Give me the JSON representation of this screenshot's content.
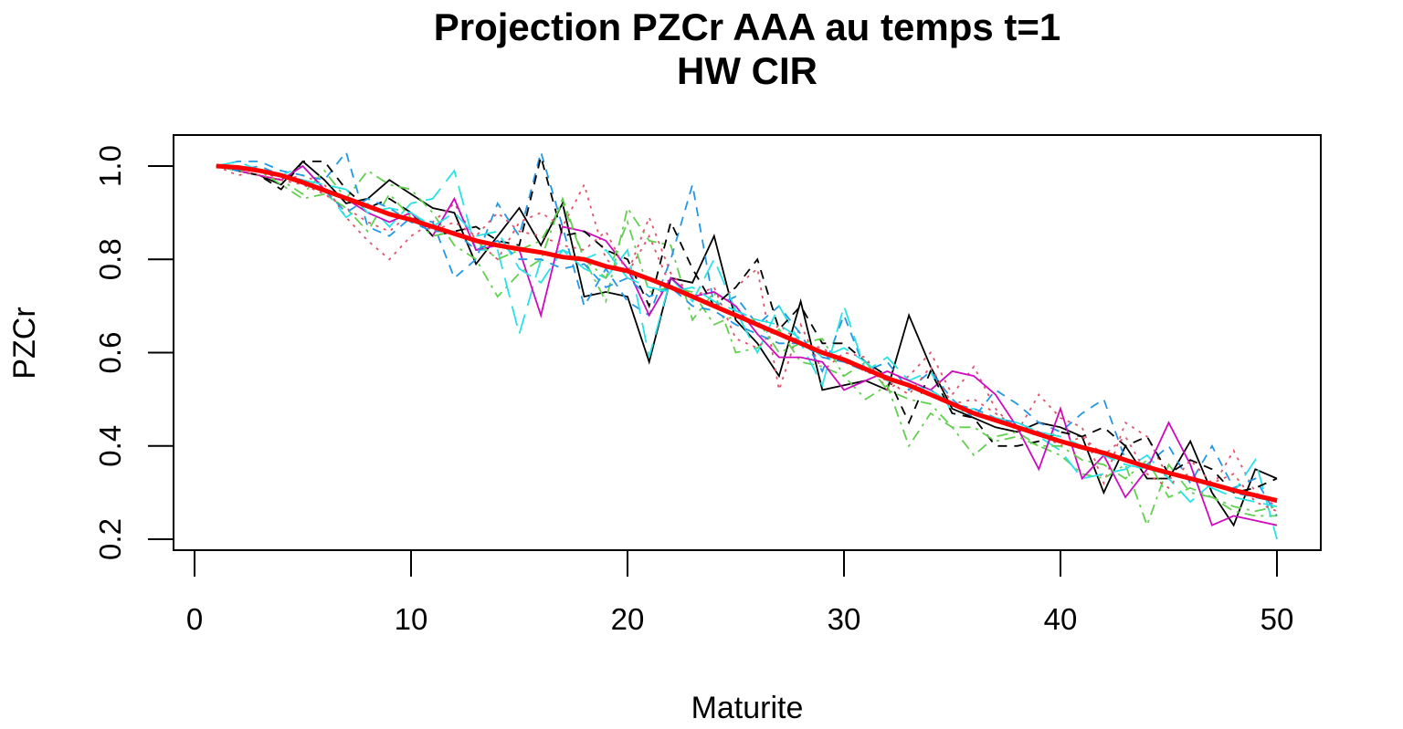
{
  "chart_data": {
    "type": "line",
    "title": "Projection PZCr AAA au temps t=1",
    "subtitle": "HW CIR",
    "xlabel": "Maturite",
    "ylabel": "PZCr",
    "xlim": [
      1,
      50
    ],
    "ylim": [
      0.2,
      1.0
    ],
    "xticks": [
      0,
      10,
      20,
      30,
      40,
      50
    ],
    "yticks": [
      0.2,
      0.4,
      0.6,
      0.8,
      1.0
    ],
    "ytick_labels": [
      "0.2",
      "0.4",
      "0.6",
      "0.8",
      "1.0"
    ],
    "xtick_labels": [
      "0",
      "10",
      "20",
      "30",
      "40",
      "50"
    ],
    "x": [
      1,
      2,
      3,
      4,
      5,
      6,
      7,
      8,
      9,
      10,
      11,
      12,
      13,
      14,
      15,
      16,
      17,
      18,
      19,
      20,
      21,
      22,
      23,
      24,
      25,
      26,
      27,
      28,
      29,
      30,
      31,
      32,
      33,
      34,
      35,
      36,
      37,
      38,
      39,
      40,
      41,
      42,
      43,
      44,
      45,
      46,
      47,
      48,
      49,
      50
    ],
    "mean_color": "#ff0000",
    "series_colors": [
      "#000000",
      "#df536b",
      "#61d04f",
      "#2297e6",
      "#28e2e5",
      "#cd0bbc",
      "#000000",
      "#df536b",
      "#61d04f",
      "#2297e6",
      "#28e2e5"
    ],
    "series_styles": [
      "solid",
      "dotted",
      "dashdot",
      "dashed",
      "longdash",
      "solid",
      "dashed",
      "dotted",
      "dashdot",
      "dashed",
      "longdash"
    ],
    "series": [
      {
        "values": [
          1.0,
          0.99,
          0.98,
          0.96,
          1.01,
          0.97,
          0.92,
          0.93,
          0.97,
          0.94,
          0.91,
          0.9,
          0.79,
          0.85,
          0.91,
          0.83,
          0.92,
          0.72,
          0.73,
          0.72,
          0.58,
          0.76,
          0.75,
          0.85,
          0.67,
          0.62,
          0.55,
          0.71,
          0.52,
          0.53,
          0.54,
          0.52,
          0.68,
          0.57,
          0.48,
          0.46,
          0.44,
          0.43,
          0.45,
          0.44,
          0.42,
          0.3,
          0.4,
          0.33,
          0.33,
          0.41,
          0.3,
          0.23,
          0.35,
          0.33
        ]
      },
      {
        "values": [
          1.0,
          0.98,
          0.99,
          0.97,
          0.98,
          0.96,
          0.89,
          0.84,
          0.8,
          0.85,
          0.88,
          0.92,
          0.84,
          0.8,
          0.88,
          0.9,
          0.87,
          0.96,
          0.8,
          0.77,
          0.85,
          0.74,
          0.72,
          0.7,
          0.74,
          0.78,
          0.52,
          0.66,
          0.56,
          0.6,
          0.59,
          0.52,
          0.55,
          0.6,
          0.51,
          0.57,
          0.48,
          0.43,
          0.51,
          0.46,
          0.44,
          0.32,
          0.45,
          0.42,
          0.33,
          0.34,
          0.31,
          0.39,
          0.3,
          0.27
        ]
      },
      {
        "values": [
          1.0,
          0.99,
          0.98,
          0.97,
          0.94,
          0.99,
          0.93,
          0.99,
          0.96,
          0.95,
          0.9,
          0.83,
          0.8,
          0.72,
          0.77,
          0.8,
          0.93,
          0.8,
          0.71,
          0.91,
          0.84,
          0.83,
          0.67,
          0.73,
          0.6,
          0.61,
          0.65,
          0.58,
          0.57,
          0.55,
          0.5,
          0.53,
          0.4,
          0.47,
          0.44,
          0.38,
          0.42,
          0.43,
          0.4,
          0.38,
          0.34,
          0.33,
          0.36,
          0.23,
          0.36,
          0.3,
          0.29,
          0.26,
          0.25,
          0.25
        ]
      },
      {
        "values": [
          1.0,
          1.01,
          1.01,
          0.99,
          0.98,
          0.97,
          1.03,
          0.87,
          0.85,
          0.89,
          0.88,
          0.76,
          0.8,
          0.92,
          0.85,
          1.03,
          0.87,
          0.7,
          0.78,
          0.71,
          0.68,
          0.8,
          0.96,
          0.7,
          0.72,
          0.66,
          0.7,
          0.64,
          0.56,
          0.68,
          0.56,
          0.58,
          0.52,
          0.56,
          0.5,
          0.46,
          0.52,
          0.49,
          0.45,
          0.43,
          0.47,
          0.5,
          0.37,
          0.36,
          0.4,
          0.32,
          0.4,
          0.31,
          0.33,
          0.25
        ]
      },
      {
        "values": [
          1.0,
          1.01,
          0.99,
          0.98,
          1.0,
          0.95,
          0.89,
          0.92,
          0.87,
          0.92,
          0.93,
          0.99,
          0.82,
          0.82,
          0.64,
          0.8,
          0.82,
          0.78,
          0.76,
          0.82,
          0.59,
          0.76,
          0.71,
          0.8,
          0.69,
          0.6,
          0.7,
          0.62,
          0.53,
          0.7,
          0.56,
          0.59,
          0.54,
          0.56,
          0.47,
          0.48,
          0.46,
          0.44,
          0.42,
          0.39,
          0.33,
          0.34,
          0.35,
          0.38,
          0.33,
          0.28,
          0.32,
          0.3,
          0.37,
          0.2
        ]
      },
      {
        "values": [
          1.0,
          0.99,
          0.98,
          0.97,
          1.0,
          0.95,
          0.93,
          0.9,
          0.88,
          0.9,
          0.85,
          0.93,
          0.82,
          0.83,
          0.82,
          0.68,
          0.87,
          0.86,
          0.84,
          0.78,
          0.68,
          0.76,
          0.72,
          0.73,
          0.7,
          0.64,
          0.59,
          0.59,
          0.58,
          0.52,
          0.54,
          0.56,
          0.54,
          0.52,
          0.56,
          0.55,
          0.51,
          0.44,
          0.35,
          0.48,
          0.33,
          0.38,
          0.29,
          0.35,
          0.45,
          0.36,
          0.23,
          0.25,
          0.24,
          0.23
        ]
      },
      {
        "values": [
          1.0,
          0.99,
          0.98,
          0.95,
          1.01,
          1.01,
          0.95,
          0.91,
          0.93,
          0.9,
          0.85,
          0.86,
          0.87,
          0.84,
          0.83,
          1.02,
          0.85,
          0.86,
          0.82,
          0.8,
          0.7,
          0.88,
          0.78,
          0.7,
          0.74,
          0.8,
          0.65,
          0.7,
          0.62,
          0.62,
          0.58,
          0.55,
          0.45,
          0.56,
          0.47,
          0.46,
          0.4,
          0.4,
          0.41,
          0.43,
          0.42,
          0.44,
          0.4,
          0.42,
          0.34,
          0.37,
          0.35,
          0.3,
          0.31,
          0.33
        ]
      },
      {
        "values": [
          1.0,
          0.99,
          0.98,
          0.97,
          0.96,
          0.94,
          0.91,
          0.88,
          0.86,
          0.9,
          0.86,
          0.88,
          0.85,
          0.9,
          0.86,
          0.85,
          0.83,
          0.82,
          0.86,
          0.77,
          0.89,
          0.77,
          0.72,
          0.74,
          0.63,
          0.61,
          0.66,
          0.62,
          0.61,
          0.58,
          0.56,
          0.54,
          0.51,
          0.57,
          0.49,
          0.5,
          0.47,
          0.44,
          0.43,
          0.4,
          0.42,
          0.38,
          0.42,
          0.34,
          0.31,
          0.37,
          0.32,
          0.34,
          0.28,
          0.26
        ]
      },
      {
        "values": [
          1.0,
          0.99,
          0.99,
          0.96,
          0.93,
          0.94,
          0.91,
          0.86,
          0.94,
          0.89,
          0.85,
          0.86,
          0.84,
          0.8,
          0.82,
          0.84,
          0.92,
          0.8,
          0.76,
          0.88,
          0.73,
          0.74,
          0.73,
          0.66,
          0.68,
          0.67,
          0.6,
          0.62,
          0.63,
          0.55,
          0.58,
          0.52,
          0.5,
          0.49,
          0.44,
          0.44,
          0.41,
          0.42,
          0.4,
          0.4,
          0.37,
          0.36,
          0.33,
          0.37,
          0.29,
          0.31,
          0.29,
          0.27,
          0.26,
          0.27
        ]
      },
      {
        "values": [
          1.0,
          0.99,
          1.0,
          0.98,
          0.97,
          0.95,
          0.9,
          0.93,
          0.91,
          0.88,
          0.86,
          0.86,
          0.82,
          0.84,
          0.8,
          0.8,
          0.78,
          0.79,
          0.74,
          0.76,
          0.72,
          0.74,
          0.7,
          0.69,
          0.66,
          0.64,
          0.62,
          0.62,
          0.59,
          0.58,
          0.56,
          0.55,
          0.53,
          0.52,
          0.49,
          0.48,
          0.46,
          0.45,
          0.43,
          0.41,
          0.4,
          0.38,
          0.37,
          0.36,
          0.34,
          0.33,
          0.32,
          0.3,
          0.29,
          0.28
        ]
      },
      {
        "values": [
          1.0,
          1.0,
          0.99,
          0.98,
          0.97,
          0.96,
          0.95,
          0.9,
          0.91,
          0.9,
          0.87,
          0.9,
          0.85,
          0.86,
          0.78,
          0.75,
          0.82,
          0.8,
          0.82,
          0.76,
          0.74,
          0.73,
          0.74,
          0.71,
          0.69,
          0.67,
          0.66,
          0.63,
          0.59,
          0.61,
          0.58,
          0.54,
          0.53,
          0.52,
          0.49,
          0.47,
          0.46,
          0.45,
          0.43,
          0.42,
          0.4,
          0.38,
          0.36,
          0.35,
          0.34,
          0.33,
          0.31,
          0.29,
          0.28,
          0.27
        ]
      }
    ],
    "mean_values": [
      1.0,
      0.997,
      0.99,
      0.98,
      0.965,
      0.948,
      0.931,
      0.914,
      0.897,
      0.885,
      0.87,
      0.855,
      0.84,
      0.83,
      0.822,
      0.815,
      0.805,
      0.8,
      0.785,
      0.775,
      0.758,
      0.74,
      0.72,
      0.7,
      0.68,
      0.66,
      0.64,
      0.62,
      0.6,
      0.585,
      0.565,
      0.545,
      0.53,
      0.51,
      0.49,
      0.47,
      0.455,
      0.44,
      0.425,
      0.41,
      0.397,
      0.385,
      0.37,
      0.355,
      0.342,
      0.33,
      0.318,
      0.305,
      0.294,
      0.283
    ]
  }
}
